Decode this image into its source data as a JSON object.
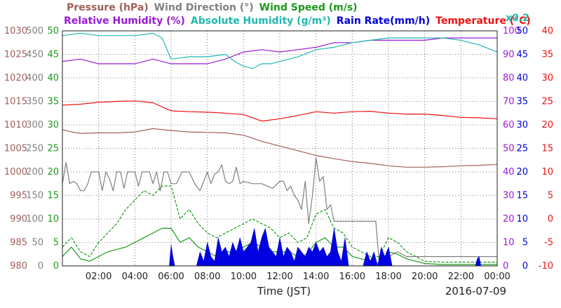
{
  "header": {
    "line1": [
      {
        "text": "Pressure (hPa)",
        "color": "#a0605a"
      },
      {
        "text": "Wind Direction (°)",
        "color": "#808080"
      },
      {
        "text": "Wind Speed (m/s)",
        "color": "#1a9a1a"
      }
    ],
    "line2": [
      {
        "text": "Relative Humidity (%)",
        "color": "#9a1ad6"
      },
      {
        "text": "Absolute Humidity (g/m³)",
        "color": "#20b8b0"
      },
      {
        "text": "Rain Rate(mm/h)",
        "color": "#0000e0"
      },
      {
        "text": "Temperature (°C)",
        "color": "#f01010"
      }
    ],
    "multiplier": {
      "text": "x0.2",
      "color": "#20b8b0"
    }
  },
  "axes": {
    "left": [
      {
        "name": "pressure",
        "color": "#a0605a",
        "labels": [
          "1030",
          "1025",
          "1020",
          "1015",
          "1010",
          "1005",
          "1000",
          "995",
          "990",
          "985",
          "980"
        ]
      },
      {
        "name": "wind-direction",
        "color": "#808080",
        "labels": [
          "500",
          "450",
          "400",
          "350",
          "300",
          "250",
          "200",
          "150",
          "100",
          "50",
          "0"
        ]
      },
      {
        "name": "wind-speed",
        "color": "#1a9a1a",
        "labels": [
          "50",
          "45",
          "40",
          "35",
          "30",
          "25",
          "20",
          "15",
          "10",
          "5",
          "0"
        ]
      }
    ],
    "right": [
      {
        "name": "relative-humidity",
        "color": "#9a1ad6",
        "labels": [
          "100",
          "90",
          "80",
          "70",
          "60",
          "50",
          "40",
          "30",
          "20",
          "10",
          "0"
        ]
      },
      {
        "name": "rain-rate",
        "color": "#0000e0",
        "labels": [
          "50",
          "45",
          "40",
          "35",
          "30",
          "25",
          "20",
          "15",
          "10",
          "5",
          "0"
        ]
      },
      {
        "name": "temperature",
        "color": "#f01010",
        "labels": [
          "40",
          "35",
          "30",
          "25",
          "20",
          "15",
          "10",
          "5",
          "0",
          "-5",
          "-10"
        ]
      }
    ],
    "x_ticks": [
      "02:00",
      "04:00",
      "06:00",
      "08:00",
      "10:00",
      "12:00",
      "14:00",
      "16:00",
      "18:00",
      "20:00",
      "22:00",
      "00:00"
    ],
    "x_label": "Time (JST)",
    "date": "2016-07-09"
  },
  "chart_data": {
    "type": "line",
    "title": "",
    "xlabel": "Time (JST)",
    "date": "2016-07-09",
    "xlim": [
      0,
      24
    ],
    "grid": true,
    "series": [
      {
        "name": "Pressure (hPa)",
        "color": "#a0605a",
        "ylim": [
          980,
          1030
        ],
        "x": [
          0,
          0.5,
          1,
          2,
          3,
          4,
          5,
          6,
          7,
          8,
          9,
          10,
          11,
          12,
          13,
          14,
          15,
          16,
          17,
          18,
          19,
          20,
          21,
          22,
          23,
          24
        ],
        "values": [
          1009.0,
          1008.5,
          1008.2,
          1008.3,
          1008.3,
          1008.5,
          1009.2,
          1008.8,
          1008.5,
          1008.4,
          1008.3,
          1007.8,
          1006.5,
          1005.5,
          1004.5,
          1003.5,
          1002.8,
          1002.2,
          1001.8,
          1001.3,
          1001.0,
          1001.0,
          1001.1,
          1001.3,
          1001.4,
          1001.6
        ]
      },
      {
        "name": "Relative Humidity (%)",
        "color": "#9a1ad6",
        "ylim": [
          0,
          100
        ],
        "x": [
          0,
          1,
          2,
          3,
          4,
          5,
          6,
          7,
          8,
          9,
          10,
          11,
          12,
          13,
          14,
          15,
          16,
          17,
          18,
          19,
          20,
          21,
          22,
          23,
          24
        ],
        "values": [
          87,
          88,
          86,
          86,
          86,
          88,
          86,
          86,
          86,
          88,
          91,
          92,
          91,
          92,
          93,
          95,
          95,
          96,
          96,
          96,
          96,
          97,
          97,
          97,
          97
        ]
      },
      {
        "name": "Absolute Humidity (g/m³) x0.2",
        "color": "#20b8b0",
        "ylim": [
          0,
          100
        ],
        "x": [
          0,
          1,
          2,
          3,
          4,
          5,
          5.5,
          6,
          7,
          8,
          9,
          9.5,
          10,
          10.5,
          11,
          11.5,
          12,
          13,
          14,
          15,
          16,
          17,
          18,
          19,
          20,
          21,
          22,
          23,
          24
        ],
        "values": [
          98,
          99,
          98,
          98,
          98,
          99,
          97,
          88,
          89,
          89,
          90,
          87,
          85,
          84,
          86,
          86,
          87,
          89,
          92,
          93,
          95,
          96,
          97,
          97,
          97,
          97,
          96,
          94,
          91
        ]
      },
      {
        "name": "Temperature (°C)",
        "color": "#f01010",
        "ylim": [
          -10,
          40
        ],
        "x": [
          0,
          1,
          2,
          3,
          4,
          5,
          6,
          7,
          8,
          9,
          10,
          11,
          12,
          13,
          14,
          15,
          16,
          17,
          18,
          19,
          20,
          21,
          22,
          23,
          24
        ],
        "values": [
          24.2,
          24.4,
          24.8,
          25.0,
          25.1,
          24.7,
          23.0,
          22.8,
          22.7,
          22.5,
          22.2,
          20.8,
          21.3,
          22.0,
          22.8,
          22.5,
          22.8,
          22.9,
          22.5,
          22.3,
          22.3,
          22.0,
          21.6,
          21.5,
          21.3
        ]
      },
      {
        "name": "Wind Direction (°)",
        "color": "#808080",
        "ylim": [
          0,
          500
        ],
        "x": [
          0,
          0.2,
          0.4,
          0.6,
          0.8,
          1,
          1.2,
          1.4,
          1.6,
          2,
          2.2,
          2.4,
          2.6,
          2.8,
          3,
          3.2,
          3.4,
          3.6,
          3.8,
          4,
          4.2,
          4.4,
          4.6,
          4.8,
          5,
          5.2,
          5.4,
          5.6,
          5.8,
          6,
          6.3,
          6.6,
          7,
          7.3,
          7.6,
          8,
          8.2,
          8.4,
          8.6,
          8.8,
          9,
          9.2,
          9.4,
          9.6,
          9.8,
          10,
          10.5,
          11,
          11.3,
          11.6,
          12,
          12.2,
          12.4,
          12.6,
          12.8,
          13,
          13.2,
          13.4,
          13.6,
          13.8,
          14,
          14.2,
          14.4,
          14.6,
          14.8,
          15,
          15.5,
          16,
          16.5,
          17,
          17.3,
          17.5,
          17.7,
          18,
          18.5,
          19,
          20,
          21,
          22,
          23,
          24
        ],
        "values": [
          175,
          220,
          175,
          180,
          175,
          160,
          160,
          175,
          200,
          200,
          160,
          200,
          185,
          160,
          200,
          200,
          165,
          200,
          200,
          200,
          170,
          200,
          200,
          200,
          175,
          200,
          160,
          200,
          200,
          175,
          175,
          200,
          200,
          175,
          160,
          200,
          175,
          195,
          200,
          215,
          180,
          175,
          180,
          210,
          175,
          180,
          175,
          175,
          170,
          165,
          180,
          180,
          160,
          170,
          150,
          140,
          120,
          180,
          90,
          150,
          230,
          180,
          190,
          120,
          130,
          95,
          95,
          95,
          95,
          95,
          95,
          0,
          0,
          20,
          30,
          20,
          20,
          20,
          20,
          20,
          20
        ]
      },
      {
        "name": "Wind Speed (m/s)",
        "color": "#1a9a1a",
        "ylim": [
          0,
          50
        ],
        "x": [
          0,
          0.5,
          1,
          1.5,
          2,
          2.5,
          3,
          3.5,
          4,
          4.5,
          5,
          5.5,
          6,
          6.5,
          7,
          7.5,
          8,
          8.5,
          9,
          9.5,
          10,
          10.5,
          11,
          11.5,
          12,
          12.5,
          13,
          13.5,
          14,
          14.5,
          15,
          15.5,
          16,
          17,
          17.5,
          18,
          18.5,
          19,
          20,
          21,
          22,
          23,
          24
        ],
        "values": [
          2,
          4,
          1.5,
          1,
          2,
          3,
          3.5,
          4,
          5,
          6,
          7,
          8,
          8,
          5,
          6,
          4,
          3,
          2,
          3,
          3,
          4,
          5,
          4,
          3,
          3,
          3,
          2,
          2.5,
          5,
          6,
          4,
          4,
          2,
          1,
          0.5,
          3,
          2.5,
          1.5,
          0.5,
          0.3,
          0.3,
          0.3,
          0.3
        ]
      },
      {
        "name": "Wind Speed (m/s) gust",
        "color": "#1a9a1a",
        "ylim": [
          0,
          50
        ],
        "x": [
          0,
          0.5,
          1,
          1.5,
          2,
          2.5,
          3,
          3.5,
          4,
          4.5,
          5,
          5.5,
          6,
          6.5,
          7,
          7.5,
          8,
          8.5,
          9,
          9.5,
          10,
          10.5,
          11,
          11.5,
          12,
          12.5,
          13,
          13.5,
          14,
          14.5,
          15,
          15.5,
          16,
          17,
          17.5,
          18,
          18.5,
          19,
          20,
          21,
          22,
          23,
          24
        ],
        "values": [
          4,
          6,
          3,
          2,
          5,
          7,
          9,
          12,
          14,
          16,
          15,
          17,
          17,
          10,
          12,
          9,
          7,
          6,
          7,
          8,
          9,
          10,
          9,
          8,
          6,
          7,
          5,
          6,
          11,
          12,
          8,
          7,
          4,
          2,
          2,
          6,
          5,
          3,
          1,
          0.8,
          0.8,
          0.8,
          0.8
        ]
      },
      {
        "name": "Rain Rate(mm/h)",
        "type": "area",
        "color": "#0000e0",
        "ylim": [
          0,
          50
        ],
        "x": [
          0,
          5.9,
          6.0,
          6.1,
          6.2,
          7.4,
          7.6,
          7.8,
          8.0,
          8.2,
          8.4,
          8.6,
          8.8,
          9.0,
          9.2,
          9.4,
          9.6,
          9.8,
          10.0,
          10.2,
          10.4,
          10.6,
          10.8,
          11.0,
          11.2,
          11.4,
          11.6,
          11.8,
          12.0,
          12.2,
          12.4,
          12.6,
          12.8,
          13.0,
          13.2,
          13.4,
          13.6,
          13.8,
          14.0,
          14.2,
          14.4,
          14.6,
          14.8,
          15.0,
          15.2,
          15.4,
          15.6,
          15.8,
          16.0,
          16.6,
          16.8,
          17.0,
          17.2,
          17.4,
          17.6,
          17.8,
          18.0,
          18.2,
          22.8,
          22.9,
          23.0,
          23.1,
          24
        ],
        "values": [
          0,
          0,
          4.5,
          2,
          0,
          0,
          3,
          1,
          5,
          2,
          1,
          6,
          3,
          4,
          2,
          5,
          3,
          6,
          3,
          4,
          5,
          8,
          3,
          6,
          8,
          4,
          3,
          2,
          6,
          2,
          4,
          3,
          1,
          4,
          3,
          2,
          4,
          3,
          5,
          3,
          4,
          2,
          3,
          8,
          3,
          1,
          6,
          0,
          0,
          0,
          3,
          1,
          3,
          0,
          4,
          2,
          4,
          0,
          0,
          1.5,
          2,
          0,
          0
        ]
      }
    ]
  }
}
